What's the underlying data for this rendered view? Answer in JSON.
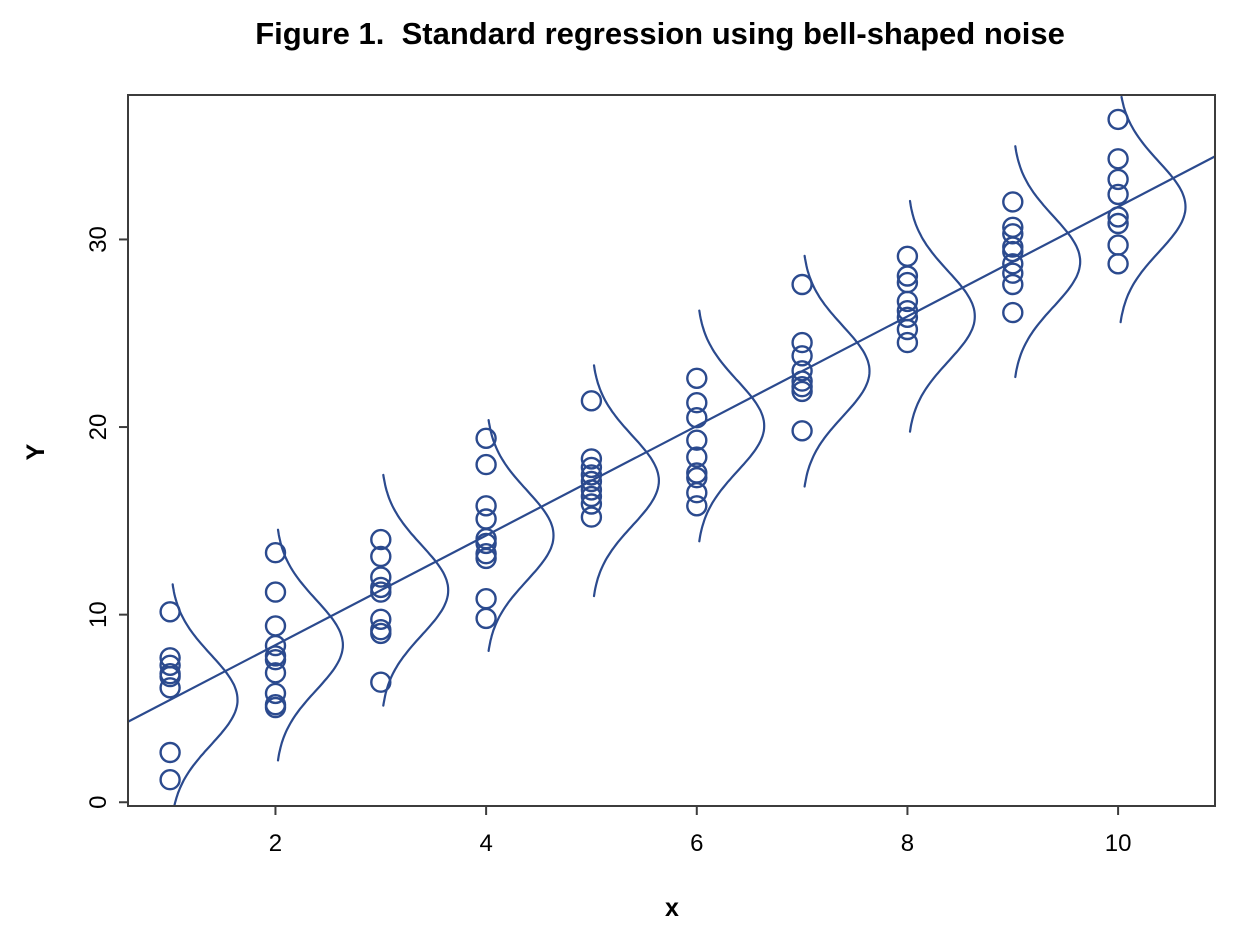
{
  "title": "Figure 1.  Standard regression using bell-shaped noise",
  "chart_data": {
    "type": "scatter",
    "title": "Figure 1.  Standard regression using bell-shaped noise",
    "xlabel": "x",
    "ylabel": "Y",
    "xlim": [
      0.6,
      10.92
    ],
    "ylim": [
      -0.2,
      37.7
    ],
    "x_ticks": [
      2,
      4,
      6,
      8,
      10
    ],
    "y_ticks": [
      0,
      10,
      20,
      30
    ],
    "grid": "off",
    "legend": "none",
    "point_style": "open-circle",
    "point_color": "#2b4a8e",
    "line_color": "#2b4a8e",
    "box_color": "#3c3c3c",
    "series": [
      {
        "x": 1,
        "y": [
          10.15,
          7.7,
          7.3,
          6.85,
          6.7,
          6.1,
          2.65,
          1.2
        ]
      },
      {
        "x": 2,
        "y": [
          13.3,
          11.2,
          9.4,
          8.35,
          7.8,
          7.6,
          6.9,
          5.8,
          5.2,
          5.05
        ]
      },
      {
        "x": 3,
        "y": [
          14.0,
          13.1,
          12.0,
          11.45,
          11.2,
          9.75,
          9.2,
          9.0,
          6.4
        ]
      },
      {
        "x": 4,
        "y": [
          19.4,
          18.0,
          15.8,
          15.1,
          14.05,
          13.8,
          13.25,
          13.0,
          10.85,
          9.8
        ]
      },
      {
        "x": 5,
        "y": [
          21.4,
          18.3,
          17.85,
          17.45,
          17.1,
          16.65,
          16.3,
          15.9,
          15.2
        ]
      },
      {
        "x": 6,
        "y": [
          22.6,
          21.3,
          20.5,
          19.3,
          18.4,
          17.55,
          17.3,
          16.5,
          15.8
        ]
      },
      {
        "x": 7,
        "y": [
          27.6,
          24.5,
          23.8,
          23.0,
          22.45,
          22.15,
          21.9,
          19.8
        ]
      },
      {
        "x": 8,
        "y": [
          29.1,
          28.05,
          27.7,
          26.7,
          26.2,
          25.85,
          25.2,
          24.5
        ]
      },
      {
        "x": 9,
        "y": [
          32.0,
          30.65,
          30.3,
          29.6,
          29.35,
          28.7,
          28.2,
          27.6,
          26.1
        ]
      },
      {
        "x": 10,
        "y": [
          36.4,
          34.3,
          33.2,
          32.4,
          31.2,
          30.85,
          29.7,
          28.7
        ]
      }
    ],
    "regression_line": {
      "intercept": 2.54,
      "slope": 2.92,
      "x_start": 0.6,
      "x_end": 10.92
    },
    "noise_curves": {
      "shape": "gaussian-density-sideways",
      "count": 10,
      "centered_on_regression_at_each_x": true,
      "sigma_y_units": 2.4,
      "amplitude_x_units": 0.64,
      "half_span_y_units": 6.15
    }
  }
}
